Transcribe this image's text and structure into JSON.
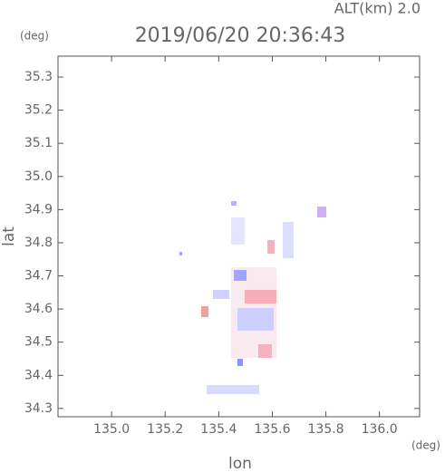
{
  "chart_data": {
    "type": "map",
    "title": "2019/06/20 20:36:43",
    "subtitle": "ALT(km) 2.0",
    "y_unit": "(deg)",
    "x_unit": "(deg)",
    "xlabel": "lon",
    "ylabel": "lat",
    "xlim": [
      134.8,
      136.15
    ],
    "ylim": [
      34.275,
      35.363
    ],
    "xticks": [
      {
        "value": 135,
        "label": "135.0"
      },
      135.2,
      135.4,
      135.6,
      135.8,
      {
        "value": 136,
        "label": "136.0"
      }
    ],
    "yticks": [
      34.3,
      34.4,
      34.5,
      34.6,
      34.7,
      34.8,
      34.9,
      {
        "value": 35,
        "label": "35.0"
      },
      35.1,
      35.2,
      35.3
    ]
  }
}
